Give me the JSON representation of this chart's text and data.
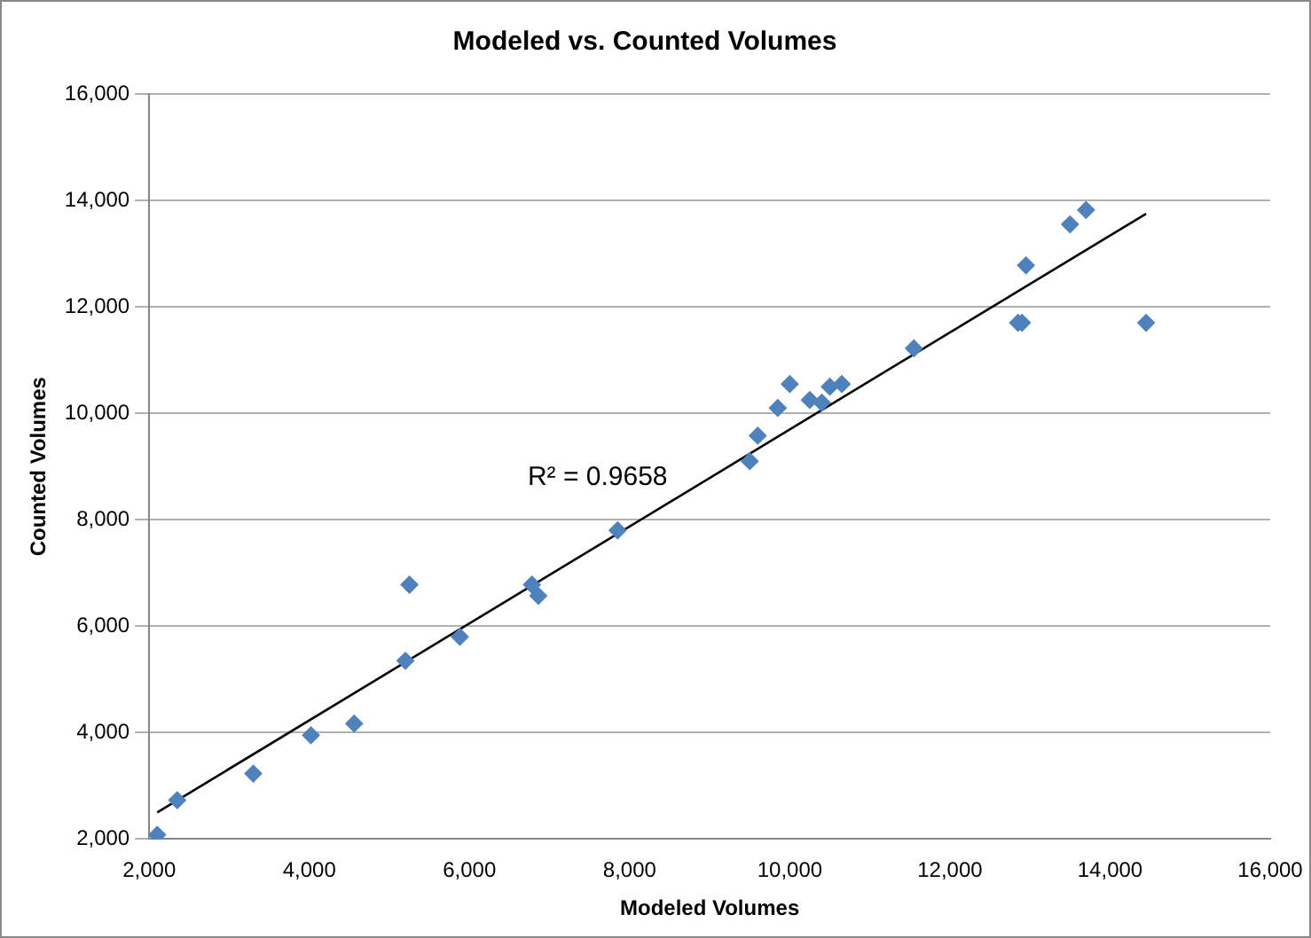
{
  "chart_data": {
    "type": "scatter",
    "title": "Modeled vs. Counted Volumes",
    "xlabel": "Modeled Volumes",
    "ylabel": "Counted Volumes",
    "xlim": [
      2000,
      16000
    ],
    "xticks": [
      {
        "value": 2000,
        "label": "2,000"
      },
      {
        "value": 4000,
        "label": "4,000"
      },
      {
        "value": 6000,
        "label": "6,000"
      },
      {
        "value": 8000,
        "label": "8,000"
      },
      {
        "value": 10000,
        "label": "10,000"
      },
      {
        "value": 12000,
        "label": "12,000"
      },
      {
        "value": 14000,
        "label": "14,000"
      },
      {
        "value": 16000,
        "label": "16,000"
      }
    ],
    "ylim": [
      2000,
      16000
    ],
    "yticks": [
      {
        "value": 2000,
        "label": "2,000"
      },
      {
        "value": 4000,
        "label": "4,000"
      },
      {
        "value": 6000,
        "label": "6,000"
      },
      {
        "value": 8000,
        "label": "8,000"
      },
      {
        "value": 10000,
        "label": "10,000"
      },
      {
        "value": 12000,
        "label": "12,000"
      },
      {
        "value": 14000,
        "label": "14,000"
      },
      {
        "value": 16000,
        "label": "16,000"
      }
    ],
    "grid": "y",
    "legend": false,
    "series": [
      {
        "marker": "diamond",
        "color": "#4f81bd",
        "x": [
          2100,
          2350,
          3300,
          4020,
          4560,
          5200,
          5250,
          5880,
          6780,
          6860,
          7850,
          9500,
          9600,
          9850,
          10000,
          10250,
          10400,
          10500,
          10650,
          11550,
          12850,
          12900,
          12950,
          13500,
          13700,
          14450
        ],
        "values": [
          2080,
          2730,
          3230,
          3950,
          4170,
          5350,
          6780,
          5800,
          6780,
          6570,
          7800,
          9100,
          9580,
          10100,
          10550,
          10250,
          10200,
          10500,
          10550,
          11220,
          11700,
          11700,
          12780,
          13550,
          13820,
          11700
        ]
      },
      {
        "type": "line",
        "marker": "none",
        "color": "#000000",
        "x": [
          2100,
          14450
        ],
        "values": [
          2500,
          13750
        ]
      }
    ],
    "annotations": [
      "R² = 0.9658"
    ]
  }
}
